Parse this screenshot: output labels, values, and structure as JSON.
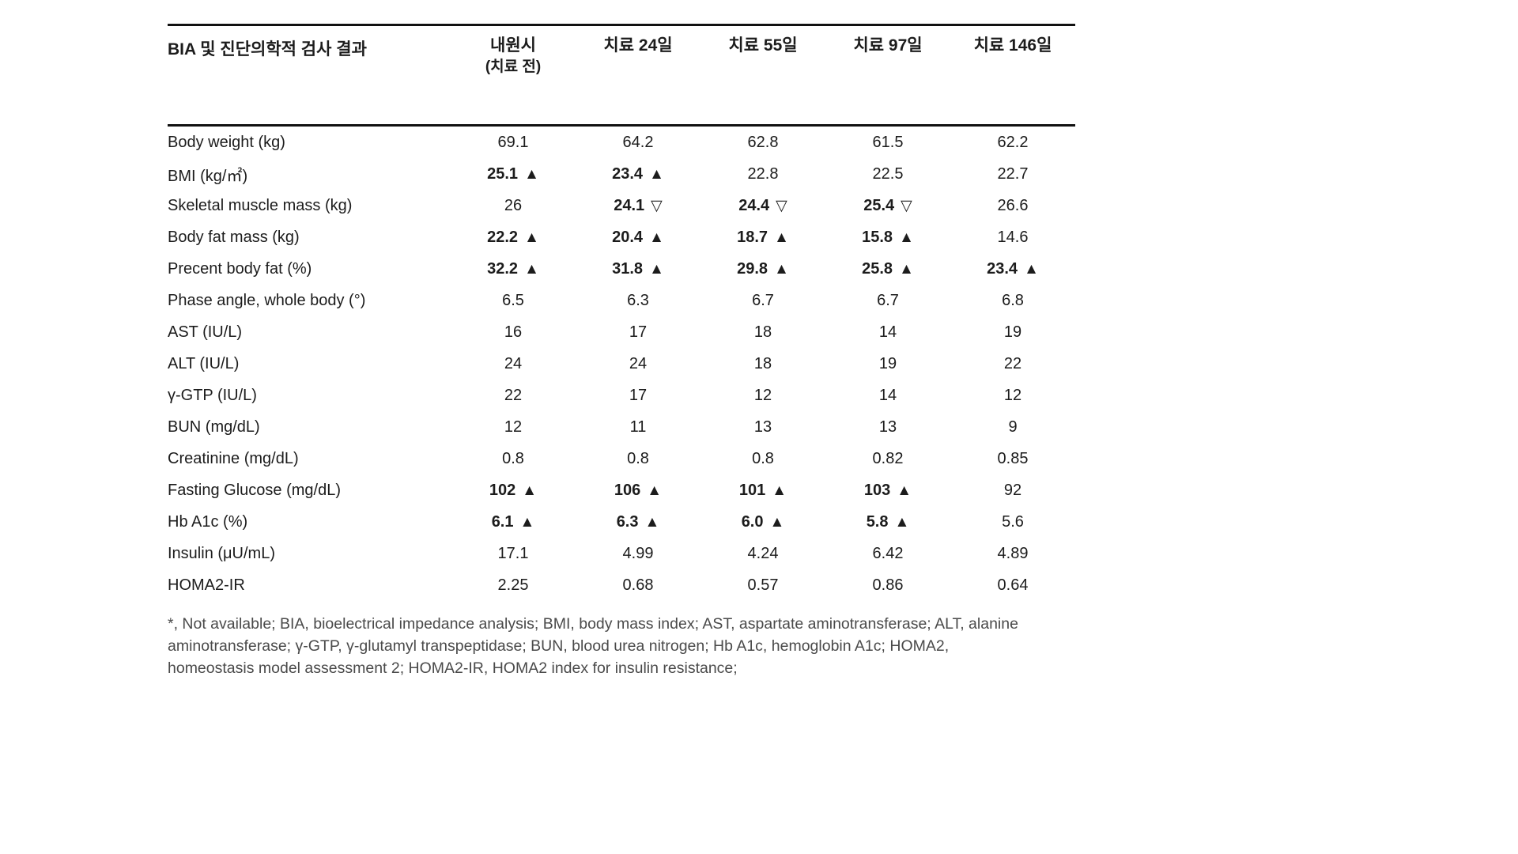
{
  "table": {
    "title": "BIA 및 진단의학적 검사 결과",
    "columns": [
      {
        "label": "내원시",
        "sublabel": "(치료 전)"
      },
      {
        "label": "치료 24일",
        "sublabel": ""
      },
      {
        "label": "치료 55일",
        "sublabel": ""
      },
      {
        "label": "치료 97일",
        "sublabel": ""
      },
      {
        "label": "치료 146일",
        "sublabel": ""
      }
    ],
    "rows": [
      {
        "label": "Body weight (kg)",
        "values": [
          {
            "v": "69.1",
            "m": ""
          },
          {
            "v": "64.2",
            "m": ""
          },
          {
            "v": "62.8",
            "m": ""
          },
          {
            "v": "61.5",
            "m": ""
          },
          {
            "v": "62.2",
            "m": ""
          }
        ]
      },
      {
        "label": "BMI (kg/㎡)",
        "values": [
          {
            "v": "25.1",
            "m": "up"
          },
          {
            "v": "23.4",
            "m": "up"
          },
          {
            "v": "22.8",
            "m": ""
          },
          {
            "v": "22.5",
            "m": ""
          },
          {
            "v": "22.7",
            "m": ""
          }
        ]
      },
      {
        "label": "Skeletal muscle mass (kg)",
        "values": [
          {
            "v": "26",
            "m": ""
          },
          {
            "v": "24.1",
            "m": "down"
          },
          {
            "v": "24.4",
            "m": "down"
          },
          {
            "v": "25.4",
            "m": "down"
          },
          {
            "v": "26.6",
            "m": ""
          }
        ]
      },
      {
        "label": "Body fat mass (kg)",
        "values": [
          {
            "v": "22.2",
            "m": "up"
          },
          {
            "v": "20.4",
            "m": "up"
          },
          {
            "v": "18.7",
            "m": "up"
          },
          {
            "v": "15.8",
            "m": "up"
          },
          {
            "v": "14.6",
            "m": ""
          }
        ]
      },
      {
        "label": "Precent body fat (%)",
        "values": [
          {
            "v": "32.2",
            "m": "up"
          },
          {
            "v": "31.8",
            "m": "up"
          },
          {
            "v": "29.8",
            "m": "up"
          },
          {
            "v": "25.8",
            "m": "up"
          },
          {
            "v": "23.4",
            "m": "up"
          }
        ]
      },
      {
        "label": "Phase angle, whole body (°)",
        "values": [
          {
            "v": "6.5",
            "m": ""
          },
          {
            "v": "6.3",
            "m": ""
          },
          {
            "v": "6.7",
            "m": ""
          },
          {
            "v": "6.7",
            "m": ""
          },
          {
            "v": "6.8",
            "m": ""
          }
        ]
      },
      {
        "label": "AST (IU/L)",
        "values": [
          {
            "v": "16",
            "m": ""
          },
          {
            "v": "17",
            "m": ""
          },
          {
            "v": "18",
            "m": ""
          },
          {
            "v": "14",
            "m": ""
          },
          {
            "v": "19",
            "m": ""
          }
        ]
      },
      {
        "label": "ALT (IU/L)",
        "values": [
          {
            "v": "24",
            "m": ""
          },
          {
            "v": "24",
            "m": ""
          },
          {
            "v": "18",
            "m": ""
          },
          {
            "v": "19",
            "m": ""
          },
          {
            "v": "22",
            "m": ""
          }
        ]
      },
      {
        "label": "γ-GTP (IU/L)",
        "values": [
          {
            "v": "22",
            "m": ""
          },
          {
            "v": "17",
            "m": ""
          },
          {
            "v": "12",
            "m": ""
          },
          {
            "v": "14",
            "m": ""
          },
          {
            "v": "12",
            "m": ""
          }
        ]
      },
      {
        "label": "BUN (mg/dL)",
        "values": [
          {
            "v": "12",
            "m": ""
          },
          {
            "v": "11",
            "m": ""
          },
          {
            "v": "13",
            "m": ""
          },
          {
            "v": "13",
            "m": ""
          },
          {
            "v": "9",
            "m": ""
          }
        ]
      },
      {
        "label": "Creatinine (mg/dL)",
        "values": [
          {
            "v": "0.8",
            "m": ""
          },
          {
            "v": "0.8",
            "m": ""
          },
          {
            "v": "0.8",
            "m": ""
          },
          {
            "v": "0.82",
            "m": ""
          },
          {
            "v": "0.85",
            "m": ""
          }
        ]
      },
      {
        "label": "Fasting Glucose (mg/dL)",
        "values": [
          {
            "v": "102",
            "m": "up"
          },
          {
            "v": "106",
            "m": "up"
          },
          {
            "v": "101",
            "m": "up"
          },
          {
            "v": "103",
            "m": "up"
          },
          {
            "v": "92",
            "m": ""
          }
        ]
      },
      {
        "label": "Hb A1c (%)",
        "values": [
          {
            "v": "6.1",
            "m": "up"
          },
          {
            "v": "6.3",
            "m": "up"
          },
          {
            "v": "6.0",
            "m": "up"
          },
          {
            "v": "5.8",
            "m": "up"
          },
          {
            "v": "5.6",
            "m": ""
          }
        ]
      },
      {
        "label": "Insulin (μU/mL)",
        "values": [
          {
            "v": "17.1",
            "m": ""
          },
          {
            "v": "4.99",
            "m": ""
          },
          {
            "v": "4.24",
            "m": ""
          },
          {
            "v": "6.42",
            "m": ""
          },
          {
            "v": "4.89",
            "m": ""
          }
        ]
      },
      {
        "label": "HOMA2-IR",
        "values": [
          {
            "v": "2.25",
            "m": ""
          },
          {
            "v": "0.68",
            "m": ""
          },
          {
            "v": "0.57",
            "m": ""
          },
          {
            "v": "0.86",
            "m": ""
          },
          {
            "v": "0.64",
            "m": ""
          }
        ]
      }
    ],
    "footnote_lines": [
      "*, Not available; BIA, bioelectrical impedance analysis; BMI, body mass index; AST, aspartate aminotransferase; ALT, alanine",
      "aminotransferase; γ-GTP, γ-glutamyl transpeptidase; BUN, blood urea nitrogen; Hb A1c, hemoglobin A1c; HOMA2,",
      "homeostasis model assessment 2; HOMA2-IR, HOMA2 index for insulin resistance;"
    ]
  },
  "markers": {
    "up": "▲",
    "down": "▽"
  },
  "colors": {
    "text": "#1c1c1c",
    "rule": "#111111",
    "footnote": "#4a4a4a"
  }
}
